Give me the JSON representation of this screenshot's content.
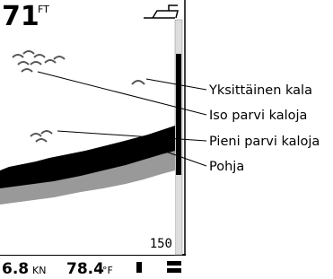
{
  "screen": {
    "depth": "71",
    "depth_unit": "FT",
    "range_bottom": "150",
    "status": {
      "speed": "6.8",
      "speed_unit": "KN",
      "temp": "78.4",
      "temp_unit": "°F"
    }
  },
  "callouts": [
    "Yksittäinen kala",
    "Iso parvi kaloja",
    "Pieni parvi kaloja",
    "Pohja"
  ]
}
